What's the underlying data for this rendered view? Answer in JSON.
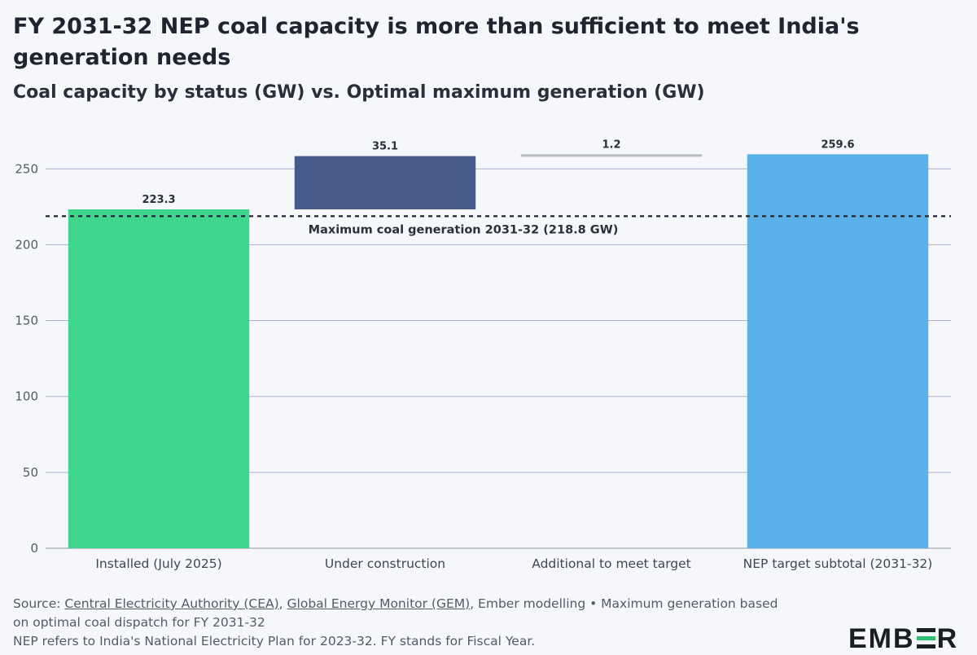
{
  "header": {
    "title": "FY 2031-32 NEP coal capacity is more than sufficient to meet India's generation needs",
    "subtitle": "Coal capacity by status (GW) vs. Optimal maximum generation (GW)"
  },
  "chart_data": {
    "type": "bar",
    "subtype": "waterfall",
    "categories": [
      "Installed (July 2025)",
      "Under construction",
      "Additional to meet target",
      "NEP target subtotal (2031-32)"
    ],
    "values": [
      223.3,
      35.1,
      1.2,
      259.6
    ],
    "bases": [
      0,
      223.3,
      258.4,
      0
    ],
    "value_labels": [
      "223.3",
      "35.1",
      "1.2",
      "259.6"
    ],
    "colors": [
      "#3dd68c",
      "#465a8c",
      "#b8bcc4",
      "#5ab1e8"
    ],
    "ylim": [
      0,
      270
    ],
    "yticks": [
      0,
      50,
      100,
      150,
      200,
      250
    ],
    "grid": true,
    "reference_line": {
      "value": 218.8,
      "label": "Maximum coal generation 2031-32 (218.8 GW)",
      "style": "dashed"
    },
    "xlabel": "",
    "ylabel": ""
  },
  "footer": {
    "source_prefix": "Source: ",
    "source_links": [
      "Central Electricity Authority (CEA)",
      "Global Energy Monitor (GEM)"
    ],
    "source_sep": ", ",
    "source_rest": ", Ember modelling • Maximum generation based on optimal coal dispatch for FY 2031-32",
    "note": "NEP refers to India's National Electricity Plan for 2023-32. FY stands for Fiscal Year."
  },
  "brand": {
    "logo_text_left": "EMB",
    "logo_text_right": "R",
    "logo_accent": "#2fbf71"
  }
}
